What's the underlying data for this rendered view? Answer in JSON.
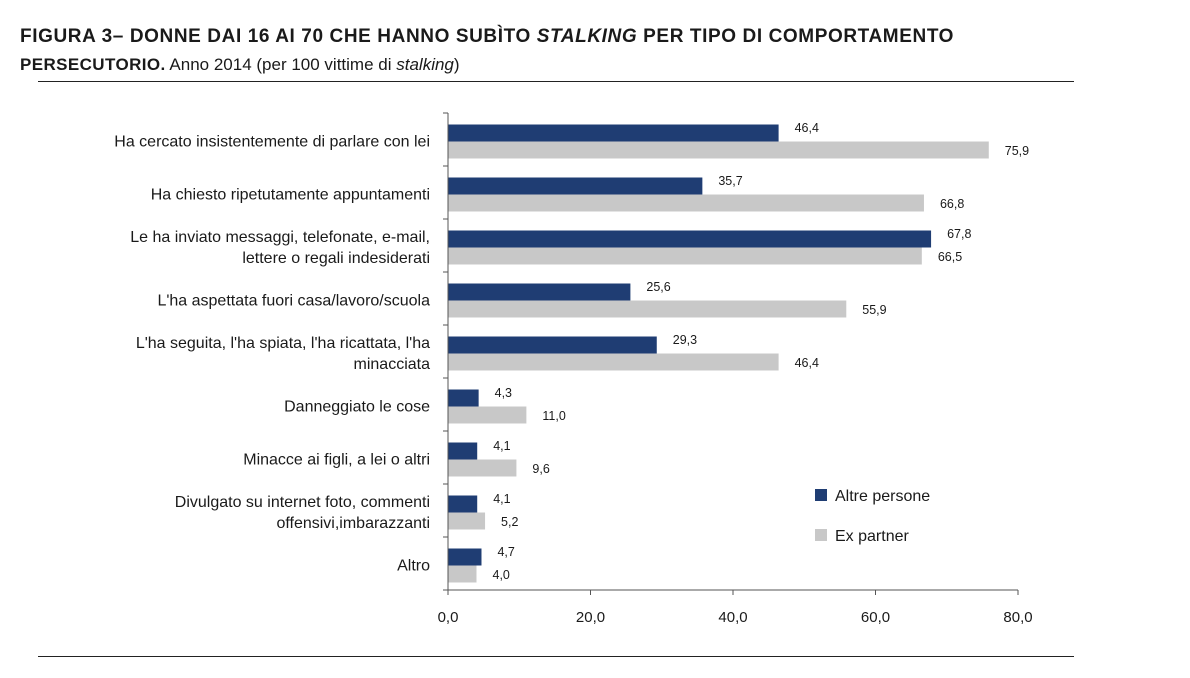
{
  "title": {
    "line1_a": "FIGURA 3– DONNE DAI 16 AI 70 CHE HANNO SUBÌTO ",
    "line1_b": "STALKING",
    "line1_c": " PER TIPO DI COMPORTAMENTO",
    "line2_a": "PERSECUTORIO.",
    "line2_b": " Anno 2014 (per 100 vittime di ",
    "line2_c": "stalking",
    "line2_d": ")"
  },
  "chart_data": {
    "type": "bar",
    "orientation": "horizontal",
    "categories": [
      [
        "Ha cercato insistentemente di parlare con lei"
      ],
      [
        "Ha chiesto ripetutamente appuntamenti"
      ],
      [
        "Le ha inviato messaggi, telefonate, e-mail,",
        "lettere o regali indesiderati"
      ],
      [
        "L'ha aspettata fuori casa/lavoro/scuola"
      ],
      [
        "L'ha seguita, l'ha spiata, l'ha ricattata, l'ha",
        "minacciata"
      ],
      [
        "Danneggiato le cose"
      ],
      [
        "Minacce ai figli, a lei o altri"
      ],
      [
        "Divulgato su internet foto, commenti",
        "offensivi,imbarazzanti"
      ],
      [
        "Altro"
      ]
    ],
    "series": [
      {
        "name": "Altre persone",
        "color": "#1f3d73",
        "values": [
          46.4,
          35.7,
          67.8,
          25.6,
          29.3,
          4.3,
          4.1,
          4.1,
          4.7
        ],
        "labels": [
          "46,4",
          "35,7",
          "67,8",
          "25,6",
          "29,3",
          "4,3",
          "4,1",
          "4,1",
          "4,7"
        ]
      },
      {
        "name": "Ex partner",
        "color": "#c8c8c8",
        "values": [
          75.9,
          66.8,
          66.5,
          55.9,
          46.4,
          11.0,
          9.6,
          5.2,
          4.0
        ],
        "labels": [
          "75,9",
          "66,8",
          "66,5",
          "55,9",
          "46,4",
          "11,0",
          "9,6",
          "5,2",
          "4,0"
        ]
      }
    ],
    "xlim": [
      0,
      80
    ],
    "xticks": [
      0,
      20,
      40,
      60,
      80
    ],
    "xtick_labels": [
      "0,0",
      "20,0",
      "40,0",
      "60,0",
      "80,0"
    ],
    "grid": false,
    "legend_position": "bottom-right"
  }
}
